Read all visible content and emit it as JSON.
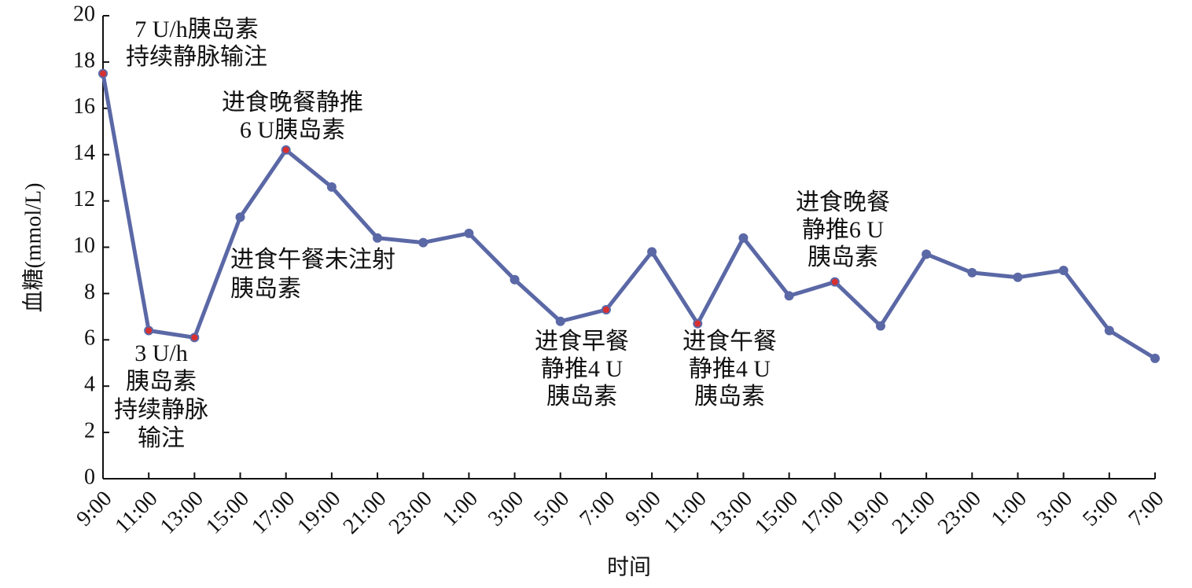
{
  "chart_data": {
    "type": "line",
    "y_label": "血糖(mmol/L)",
    "x_label": "时间",
    "categories": [
      "9:00",
      "11:00",
      "13:00",
      "15:00",
      "17:00",
      "19:00",
      "21:00",
      "23:00",
      "1:00",
      "3:00",
      "5:00",
      "7:00",
      "9:00",
      "11:00",
      "13:00",
      "15:00",
      "17:00",
      "19:00",
      "21:00",
      "23:00",
      "1:00",
      "3:00",
      "5:00",
      "7:00"
    ],
    "series": [
      {
        "name": "血糖",
        "color": "#5b68a6",
        "values": [
          17.5,
          6.4,
          6.1,
          11.3,
          14.2,
          12.6,
          10.4,
          10.2,
          10.6,
          8.6,
          6.8,
          7.3,
          9.8,
          6.7,
          10.4,
          7.9,
          8.5,
          6.6,
          9.7,
          8.9,
          8.7,
          9.0,
          6.4,
          5.2
        ]
      }
    ],
    "highlight_color": "#d83030",
    "ylim": [
      0,
      20
    ],
    "yticks": [
      0,
      2,
      4,
      6,
      8,
      10,
      12,
      14,
      16,
      18,
      20
    ],
    "annotations": [
      {
        "point": 0,
        "lines": [
          "7 U/h胰岛素",
          "持续静脉输注"
        ]
      },
      {
        "point": 1,
        "lines": [
          "3 U/h",
          "胰岛素",
          "持续静脉",
          "输注"
        ]
      },
      {
        "point": 4,
        "lines": [
          "进食晚餐静推",
          "6 U胰岛素"
        ]
      },
      {
        "point": 2,
        "lines": [
          "进食午餐未注射",
          "胰岛素"
        ]
      },
      {
        "point": 11,
        "lines": [
          "进食早餐",
          "静推4 U",
          "胰岛素"
        ]
      },
      {
        "point": 13,
        "lines": [
          "进食午餐",
          "静推4 U",
          "胰岛素"
        ]
      },
      {
        "point": 16,
        "lines": [
          "进食晚餐",
          "静推6 U",
          "胰岛素"
        ]
      }
    ]
  }
}
